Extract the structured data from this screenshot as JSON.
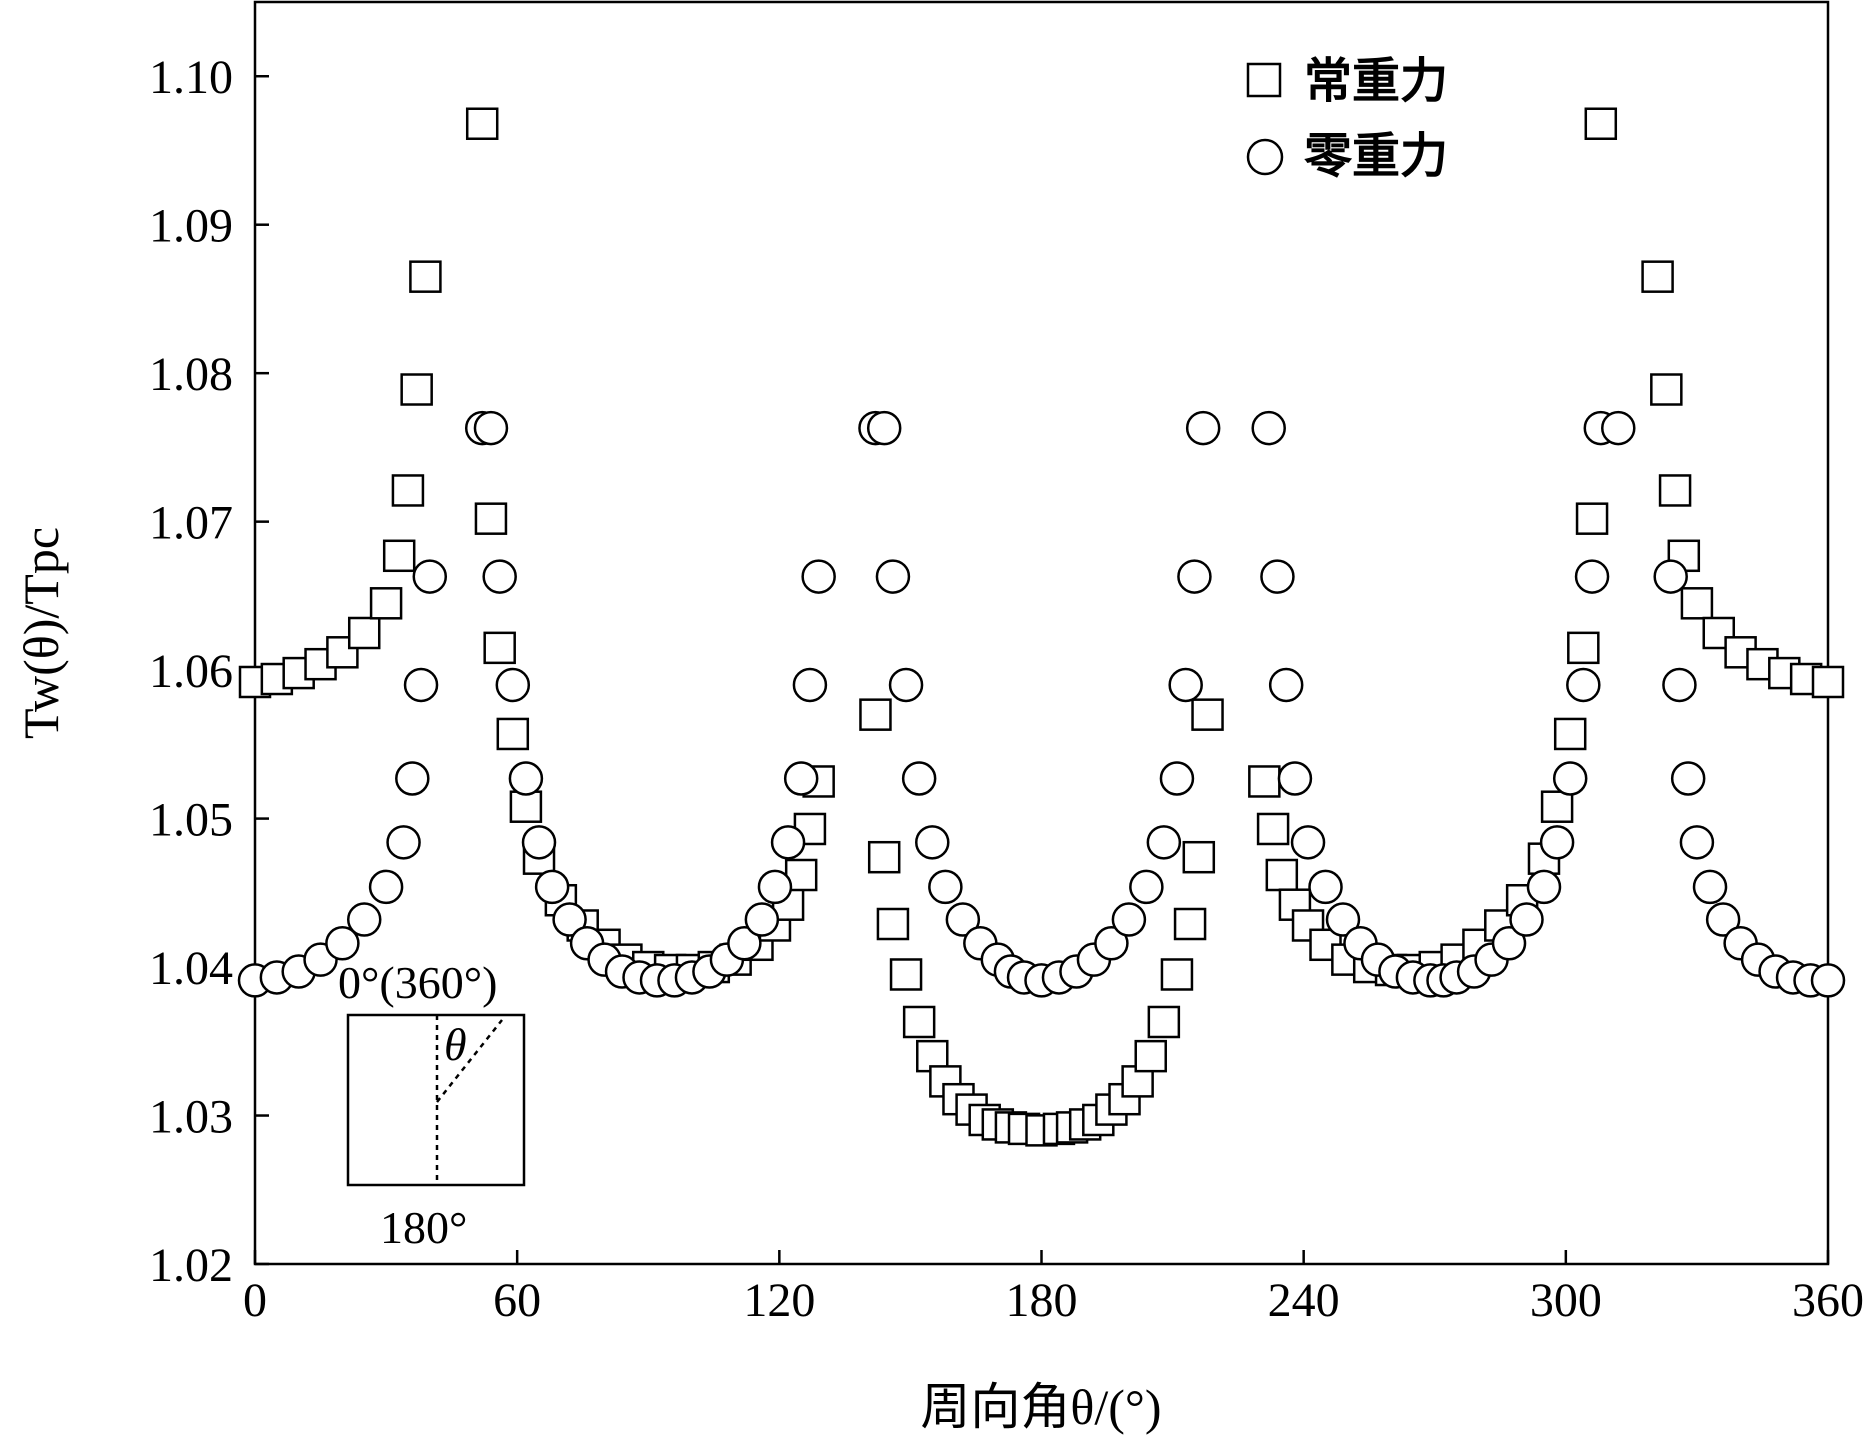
{
  "chart_data": {
    "type": "scatter",
    "xlabel": "周向角θ/(°)",
    "ylabel": "Tw(θ)/Tpc",
    "xlim": [
      0,
      360
    ],
    "ylim": [
      1.02,
      1.105
    ],
    "xticks": [
      "0",
      "60",
      "120",
      "180",
      "240",
      "300",
      "360"
    ],
    "yticks": [
      "1.02",
      "1.03",
      "1.04",
      "1.05",
      "1.06",
      "1.07",
      "1.08",
      "1.09",
      "1.10"
    ],
    "grid": false,
    "legend_position": "top-right",
    "inset": {
      "top_label": "0°(360°)",
      "bottom_label": "180°",
      "angle_label": "θ"
    },
    "series": [
      {
        "name": "常重力",
        "marker": "square",
        "x": [
          0,
          5,
          10,
          15,
          20,
          25,
          30,
          33,
          35,
          37,
          39,
          52,
          54,
          56,
          59,
          62,
          65,
          70,
          75,
          80,
          85,
          90,
          95,
          100,
          105,
          110,
          115,
          119,
          122,
          125,
          127,
          129,
          142,
          144,
          146,
          149,
          152,
          155,
          158,
          161,
          164,
          167,
          170,
          173,
          176,
          180,
          184,
          187,
          190,
          193,
          196,
          199,
          202,
          205,
          208,
          211,
          214,
          216,
          218,
          231,
          233,
          235,
          238,
          241,
          245,
          250,
          255,
          260,
          265,
          270,
          275,
          280,
          285,
          290,
          295,
          298,
          301,
          304,
          306,
          308,
          321,
          323,
          325,
          327,
          330,
          335,
          340,
          345,
          350,
          355,
          360
        ],
        "y": [
          1.0592,
          1.0594,
          1.0598,
          1.0604,
          1.0612,
          1.0625,
          1.0645,
          1.0677,
          1.0721,
          1.0789,
          1.0865,
          1.0968,
          1.0702,
          1.0615,
          1.0557,
          1.0508,
          1.0473,
          1.0445,
          1.0428,
          1.0415,
          1.0405,
          1.04,
          1.0398,
          1.0398,
          1.04,
          1.0405,
          1.0415,
          1.0428,
          1.0442,
          1.0462,
          1.0493,
          1.0525,
          1.057,
          1.0474,
          1.0429,
          1.0395,
          1.0363,
          1.034,
          1.0323,
          1.0311,
          1.0304,
          1.0297,
          1.0294,
          1.0292,
          1.0291,
          1.029,
          1.0291,
          1.0292,
          1.0294,
          1.0297,
          1.0304,
          1.0311,
          1.0323,
          1.034,
          1.0363,
          1.0395,
          1.0429,
          1.0474,
          1.057,
          1.0525,
          1.0493,
          1.0462,
          1.0442,
          1.0428,
          1.0415,
          1.0405,
          1.04,
          1.0398,
          1.0398,
          1.04,
          1.0405,
          1.0415,
          1.0428,
          1.0445,
          1.0473,
          1.0508,
          1.0557,
          1.0615,
          1.0702,
          1.0968,
          1.0865,
          1.0789,
          1.0721,
          1.0677,
          1.0645,
          1.0625,
          1.0612,
          1.0604,
          1.0598,
          1.0594,
          1.0592
        ]
      },
      {
        "name": "零重力",
        "marker": "circle",
        "x": [
          0,
          5,
          10,
          15,
          20,
          25,
          30,
          34,
          36,
          38,
          40,
          52,
          54,
          56,
          59,
          62,
          65,
          68,
          72,
          76,
          80,
          84,
          88,
          92,
          96,
          100,
          104,
          108,
          112,
          116,
          119,
          122,
          125,
          127,
          129,
          142,
          144,
          146,
          149,
          152,
          155,
          158,
          162,
          166,
          170,
          173,
          176,
          180,
          184,
          188,
          192,
          196,
          200,
          204,
          208,
          211,
          213,
          215,
          217,
          232,
          234,
          236,
          238,
          241,
          245,
          249,
          253,
          257,
          261,
          265,
          269,
          272,
          275,
          279,
          283,
          287,
          291,
          295,
          298,
          301,
          304,
          306,
          308,
          312,
          324,
          326,
          328,
          330,
          333,
          336,
          340,
          344,
          348,
          352,
          356,
          360
        ],
        "y": [
          1.0391,
          1.0393,
          1.0397,
          1.0405,
          1.0416,
          1.0432,
          1.0454,
          1.0484,
          1.0527,
          1.059,
          1.0663,
          1.0763,
          1.0763,
          1.0663,
          1.059,
          1.0527,
          1.0484,
          1.0454,
          1.0432,
          1.0416,
          1.0405,
          1.0397,
          1.0393,
          1.0391,
          1.0391,
          1.0393,
          1.0397,
          1.0405,
          1.0416,
          1.0432,
          1.0454,
          1.0484,
          1.0527,
          1.059,
          1.0663,
          1.0763,
          1.0763,
          1.0663,
          1.059,
          1.0527,
          1.0484,
          1.0454,
          1.0432,
          1.0416,
          1.0405,
          1.0397,
          1.0393,
          1.0391,
          1.0393,
          1.0397,
          1.0405,
          1.0416,
          1.0432,
          1.0454,
          1.0484,
          1.0527,
          1.059,
          1.0663,
          1.0763,
          1.0763,
          1.0663,
          1.059,
          1.0527,
          1.0484,
          1.0454,
          1.0432,
          1.0416,
          1.0405,
          1.0397,
          1.0393,
          1.0391,
          1.0391,
          1.0393,
          1.0397,
          1.0405,
          1.0416,
          1.0432,
          1.0454,
          1.0484,
          1.0527,
          1.059,
          1.0663,
          1.0763,
          1.0763,
          1.0663,
          1.059,
          1.0527,
          1.0484,
          1.0454,
          1.0432,
          1.0416,
          1.0405,
          1.0397,
          1.0393,
          1.0391,
          1.0391
        ]
      }
    ]
  }
}
